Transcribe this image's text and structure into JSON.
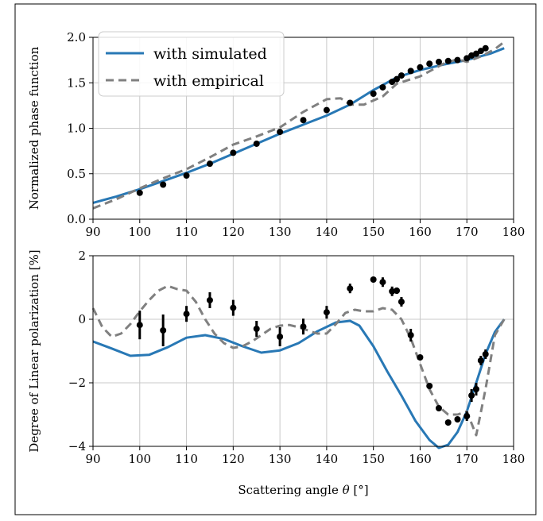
{
  "colors": {
    "simulated": "#2878b5",
    "empirical": "#808080",
    "observed": "#000000",
    "grid": "#c8c8c8",
    "frame": "#000000"
  },
  "xlabel": {
    "prefix": "Scattering angle ",
    "symbol": "θ",
    "suffix": " [°]"
  },
  "chart_data": [
    {
      "type": "line",
      "ylabel": "Normalized phase function",
      "xlim": [
        90,
        180
      ],
      "ylim": [
        0.0,
        2.0
      ],
      "grid": true,
      "xticks": [
        90,
        100,
        110,
        120,
        130,
        140,
        150,
        160,
        170,
        180
      ],
      "xtick_labels": [
        "90",
        "100",
        "110",
        "120",
        "130",
        "140",
        "150",
        "160",
        "170",
        "180"
      ],
      "yticks": [
        0.0,
        0.5,
        1.0,
        1.5,
        2.0
      ],
      "ytick_labels": [
        "0.0",
        "0.5",
        "1.0",
        "1.5",
        "2.0"
      ],
      "legend": {
        "position": "top-left",
        "entries": [
          {
            "label": "with simulated",
            "series": "simulated"
          },
          {
            "label": "with empirical",
            "series": "empirical"
          }
        ]
      },
      "series": [
        {
          "name": "with simulated",
          "key": "simulated",
          "style": "solid",
          "x": [
            90,
            95,
            100,
            105,
            110,
            115,
            120,
            125,
            130,
            135,
            140,
            145,
            150,
            155,
            160,
            165,
            170,
            175,
            178
          ],
          "y": [
            0.18,
            0.25,
            0.33,
            0.42,
            0.51,
            0.61,
            0.72,
            0.83,
            0.94,
            1.04,
            1.14,
            1.26,
            1.42,
            1.56,
            1.64,
            1.7,
            1.75,
            1.82,
            1.88
          ]
        },
        {
          "name": "with empirical",
          "key": "empirical",
          "style": "dashed",
          "x": [
            90,
            95,
            100,
            105,
            110,
            115,
            120,
            125,
            130,
            135,
            140,
            143,
            145,
            148,
            152,
            155,
            160,
            165,
            168,
            170,
            173,
            176,
            178
          ],
          "y": [
            0.12,
            0.22,
            0.34,
            0.45,
            0.55,
            0.68,
            0.82,
            0.91,
            1.01,
            1.18,
            1.32,
            1.33,
            1.26,
            1.26,
            1.35,
            1.49,
            1.57,
            1.71,
            1.76,
            1.73,
            1.79,
            1.87,
            1.95
          ]
        }
      ],
      "points": {
        "x": [
          100,
          105,
          110,
          115,
          120,
          125,
          130,
          135,
          140,
          145,
          150,
          152,
          154,
          155,
          156,
          158,
          160,
          162,
          164,
          166,
          168,
          170,
          171,
          172,
          173,
          174
        ],
        "y": [
          0.29,
          0.38,
          0.48,
          0.61,
          0.73,
          0.83,
          0.96,
          1.09,
          1.2,
          1.28,
          1.38,
          1.45,
          1.51,
          1.54,
          1.58,
          1.63,
          1.67,
          1.71,
          1.73,
          1.74,
          1.75,
          1.77,
          1.8,
          1.82,
          1.85,
          1.88
        ]
      }
    },
    {
      "type": "line",
      "ylabel": "Degree of Linear polarization [%]",
      "xlim": [
        90,
        180
      ],
      "ylim": [
        -4.0,
        2.0
      ],
      "grid": true,
      "xticks": [
        90,
        100,
        110,
        120,
        130,
        140,
        150,
        160,
        170,
        180
      ],
      "xtick_labels": [
        "90",
        "100",
        "110",
        "120",
        "130",
        "140",
        "150",
        "160",
        "170",
        "180"
      ],
      "yticks": [
        -4,
        -2,
        0,
        2
      ],
      "ytick_labels": [
        "−4",
        "−2",
        "0",
        "2"
      ],
      "series": [
        {
          "key": "simulated",
          "style": "solid",
          "x": [
            90,
            94,
            98,
            102,
            106,
            110,
            114,
            118,
            122,
            126,
            130,
            134,
            138,
            142,
            145,
            147,
            150,
            153,
            156,
            159,
            162,
            164,
            166,
            168,
            170,
            172,
            174,
            176,
            178
          ],
          "y": [
            -0.7,
            -0.92,
            -1.15,
            -1.12,
            -0.88,
            -0.58,
            -0.5,
            -0.62,
            -0.85,
            -1.05,
            -0.98,
            -0.75,
            -0.38,
            -0.1,
            -0.05,
            -0.2,
            -0.85,
            -1.65,
            -2.4,
            -3.2,
            -3.8,
            -4.05,
            -3.95,
            -3.55,
            -2.9,
            -2.0,
            -1.1,
            -0.4,
            0.0
          ]
        },
        {
          "key": "empirical",
          "style": "dashed",
          "x": [
            90,
            92,
            94,
            96,
            98,
            100,
            102,
            104,
            106,
            108,
            110,
            112,
            114,
            116,
            118,
            120,
            122,
            124,
            126,
            128,
            130,
            132,
            134,
            136,
            138,
            140,
            142,
            144,
            146,
            148,
            150,
            152,
            154,
            156,
            158,
            160,
            162,
            164,
            166,
            168,
            170,
            172,
            174,
            176,
            178
          ],
          "y": [
            0.35,
            -0.25,
            -0.55,
            -0.45,
            -0.15,
            0.25,
            0.6,
            0.9,
            1.05,
            0.95,
            0.9,
            0.55,
            0.0,
            -0.45,
            -0.75,
            -0.9,
            -0.85,
            -0.7,
            -0.5,
            -0.3,
            -0.2,
            -0.18,
            -0.25,
            -0.35,
            -0.45,
            -0.45,
            -0.15,
            0.2,
            0.3,
            0.25,
            0.25,
            0.35,
            0.3,
            0.0,
            -0.6,
            -1.4,
            -2.2,
            -2.75,
            -3.0,
            -3.0,
            -2.9,
            -3.65,
            -2.2,
            -0.5,
            0.0
          ]
        }
      ],
      "points": {
        "x": [
          100,
          105,
          110,
          115,
          120,
          125,
          130,
          135,
          140,
          145,
          150,
          152,
          154,
          155,
          156,
          158,
          160,
          162,
          164,
          166,
          168,
          170,
          171,
          172,
          173,
          174
        ],
        "y": [
          -0.18,
          -0.35,
          0.17,
          0.6,
          0.36,
          -0.3,
          -0.55,
          -0.23,
          0.22,
          0.97,
          1.25,
          1.17,
          0.88,
          0.9,
          0.55,
          -0.5,
          -1.2,
          -2.1,
          -2.8,
          -3.25,
          -3.15,
          -3.05,
          -2.4,
          -2.2,
          -1.3,
          -1.1
        ],
        "err": [
          0.45,
          0.5,
          0.25,
          0.25,
          0.25,
          0.25,
          0.3,
          0.25,
          0.2,
          0.15,
          0.0,
          0.15,
          0.15,
          0.1,
          0.15,
          0.2,
          0.0,
          0.0,
          0.0,
          0.0,
          0.0,
          0.15,
          0.2,
          0.2,
          0.15,
          0.15
        ]
      }
    }
  ]
}
